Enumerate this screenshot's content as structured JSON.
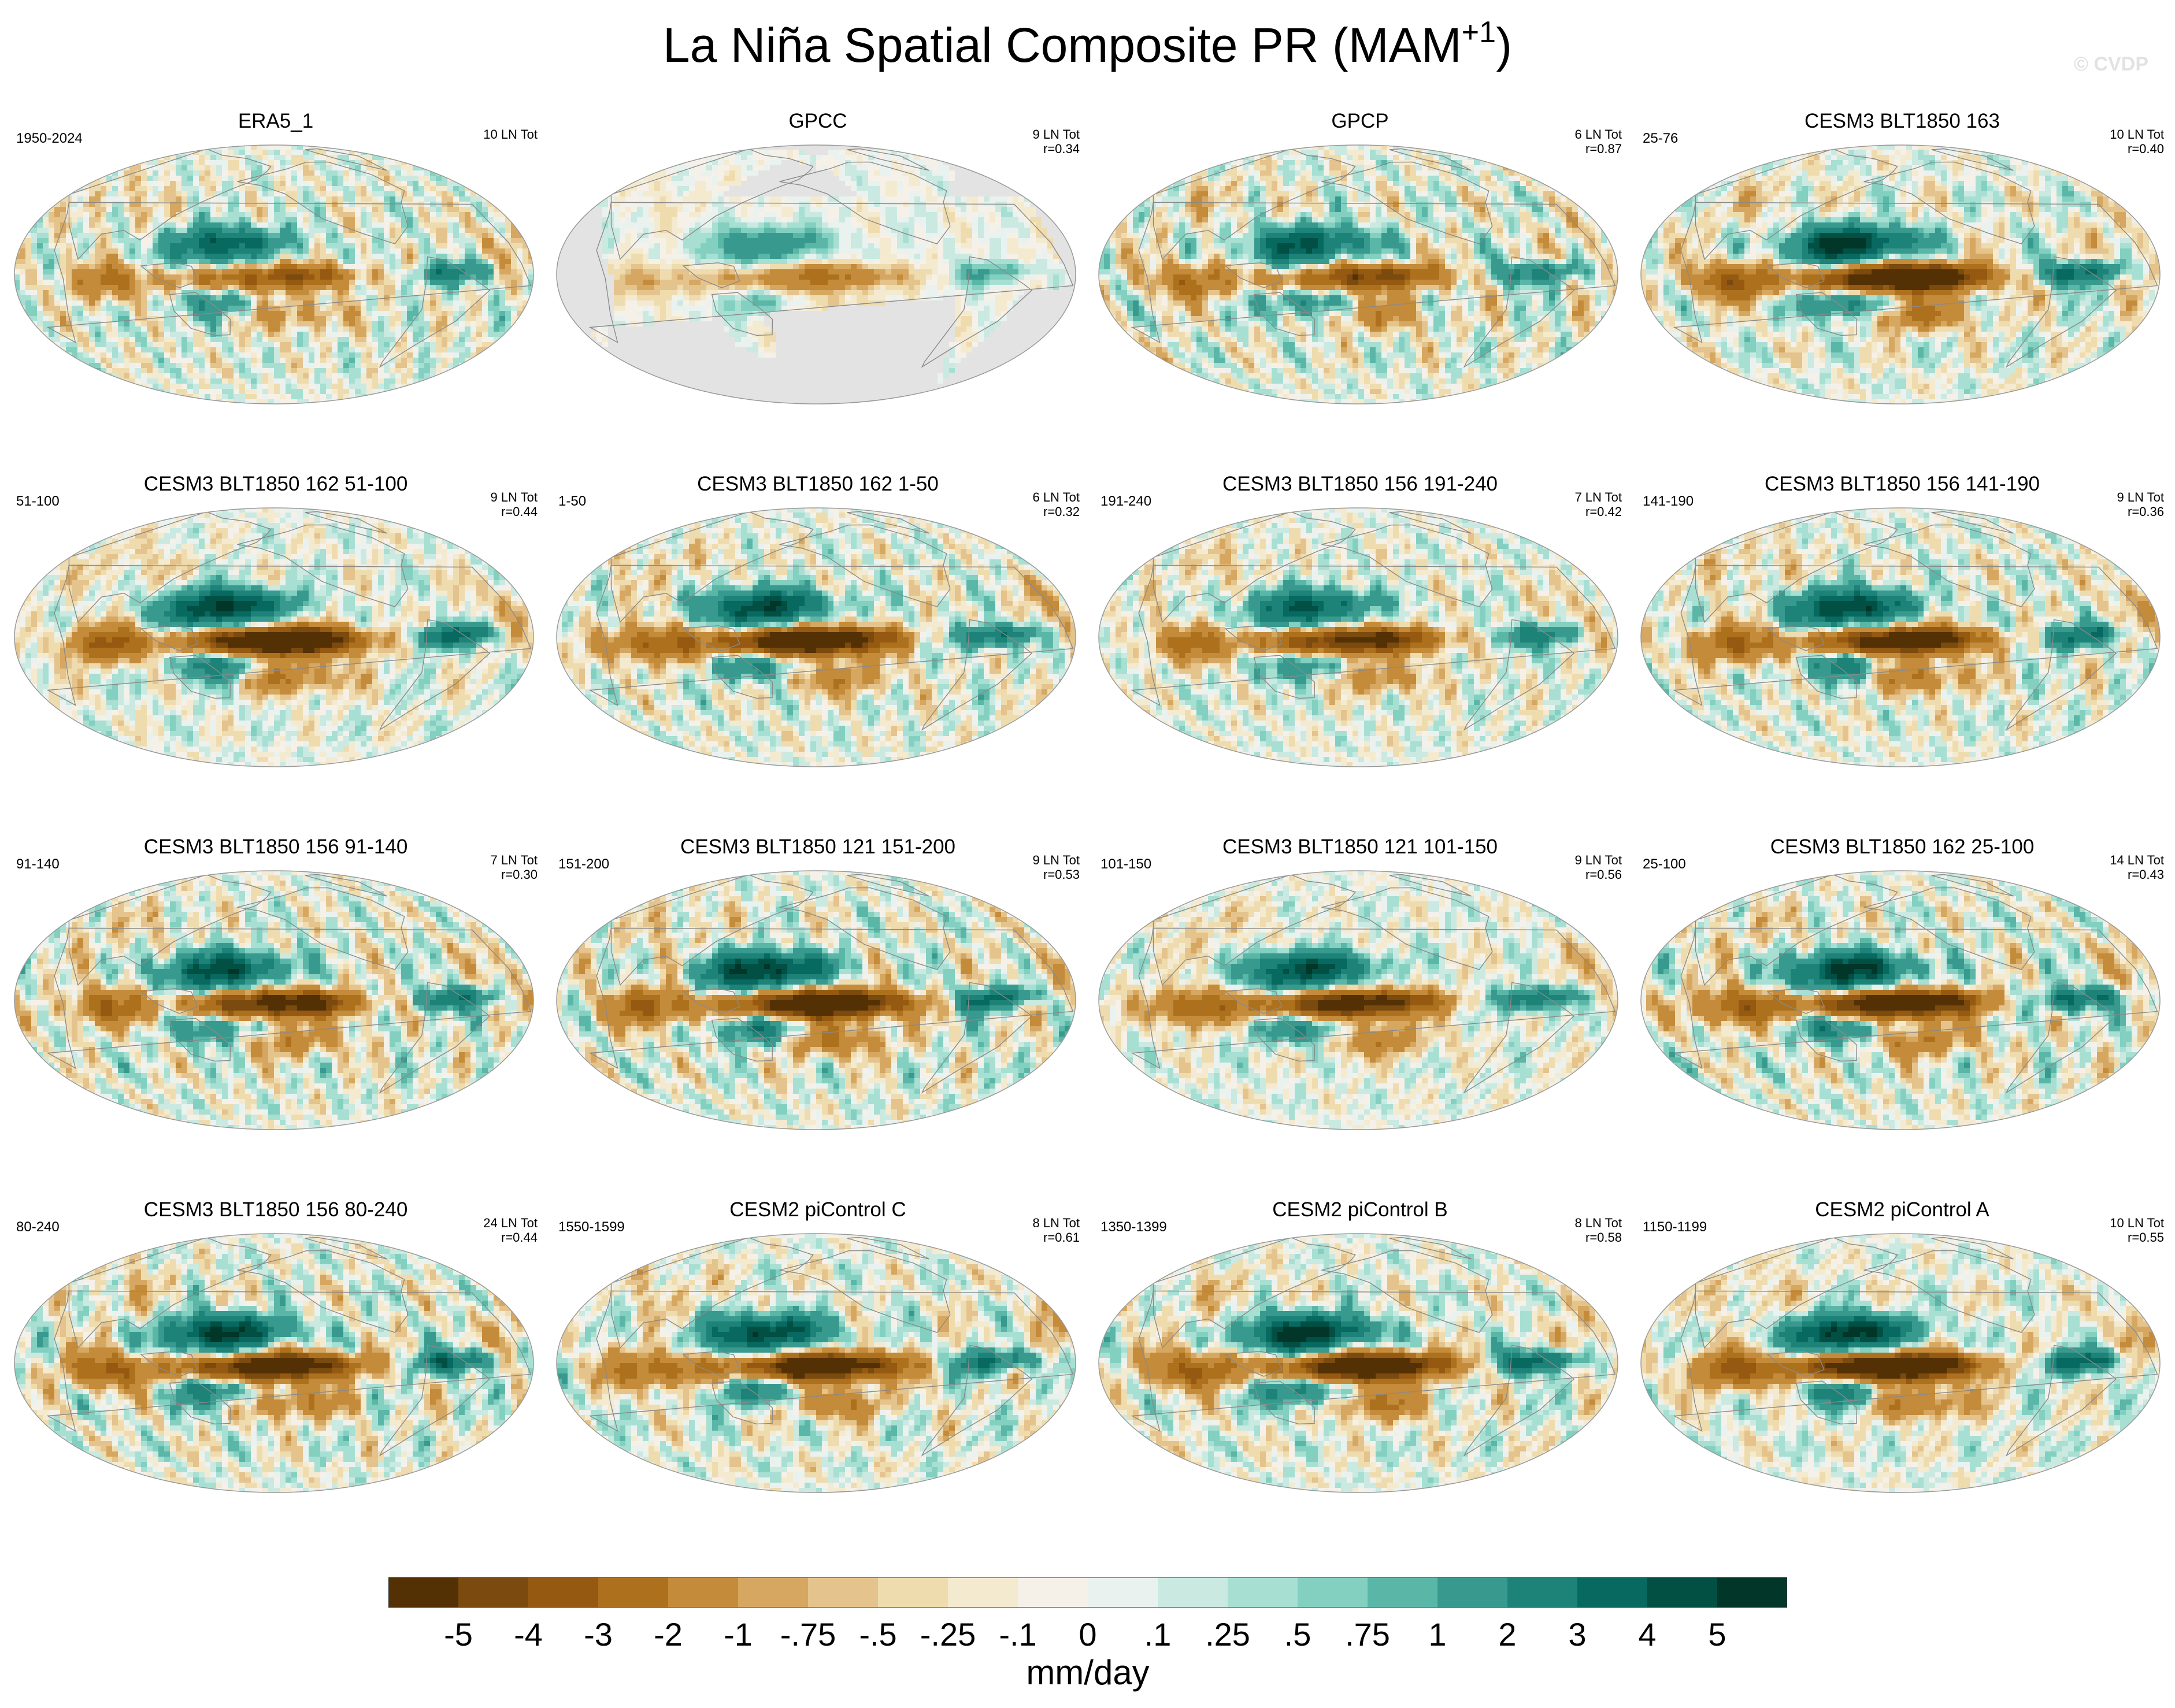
{
  "title": {
    "main": "La Niña Spatial Composite PR (MAM",
    "sup": "+1",
    "close": ")"
  },
  "watermark": "© CVDP",
  "chart_data": {
    "type": "heatmap",
    "variable": "PR",
    "units": "mm/day",
    "colorbar": {
      "levels": [
        "-5",
        "-4",
        "-3",
        "-2",
        "-1",
        "-.75",
        "-.5",
        "-.25",
        "-.1",
        "0",
        ".1",
        ".25",
        ".5",
        ".75",
        "1",
        "2",
        "3",
        "4",
        "5"
      ],
      "colors": [
        "#543005",
        "#7a4a0e",
        "#955911",
        "#ad711d",
        "#c48b3a",
        "#d6a760",
        "#e5c38c",
        "#efdcae",
        "#f4ead0",
        "#f5f1e9",
        "#e9f2ef",
        "#c9e9e1",
        "#a7dfd3",
        "#83d0c1",
        "#5ab7a8",
        "#389a8e",
        "#1d8278",
        "#07695f",
        "#024f44",
        "#013629"
      ]
    },
    "panels": [
      {
        "title": "ERA5_1",
        "period": "1950-2024",
        "count": "10 LN Tot",
        "r": "",
        "pattern": "obs"
      },
      {
        "title": "GPCC",
        "period": "",
        "count": "9 LN Tot",
        "r": "r=0.34",
        "pattern": "land"
      },
      {
        "title": "GPCP",
        "period": "",
        "count": "6 LN Tot",
        "r": "r=0.87",
        "pattern": "obs"
      },
      {
        "title": "CESM3 BLT1850 163",
        "period": "25-76",
        "count": "10 LN Tot",
        "r": "r=0.40",
        "pattern": "model"
      },
      {
        "title": "CESM3 BLT1850 162 51-100",
        "period": "51-100",
        "count": "9 LN Tot",
        "r": "r=0.44",
        "pattern": "model"
      },
      {
        "title": "CESM3 BLT1850 162 1-50",
        "period": "1-50",
        "count": "6 LN Tot",
        "r": "r=0.32",
        "pattern": "model"
      },
      {
        "title": "CESM3 BLT1850 156 191-240",
        "period": "191-240",
        "count": "7 LN Tot",
        "r": "r=0.42",
        "pattern": "model"
      },
      {
        "title": "CESM3 BLT1850 156 141-190",
        "period": "141-190",
        "count": "9 LN Tot",
        "r": "r=0.36",
        "pattern": "model"
      },
      {
        "title": "CESM3 BLT1850 156 91-140",
        "period": "91-140",
        "count": "7 LN Tot",
        "r": "r=0.30",
        "pattern": "model"
      },
      {
        "title": "CESM3 BLT1850 121 151-200",
        "period": "151-200",
        "count": "9 LN Tot",
        "r": "r=0.53",
        "pattern": "model"
      },
      {
        "title": "CESM3 BLT1850 121 101-150",
        "period": "101-150",
        "count": "9 LN Tot",
        "r": "r=0.56",
        "pattern": "model"
      },
      {
        "title": "CESM3 BLT1850 162 25-100",
        "period": "25-100",
        "count": "14 LN Tot",
        "r": "r=0.43",
        "pattern": "model"
      },
      {
        "title": "CESM3 BLT1850 156 80-240",
        "period": "80-240",
        "count": "24 LN Tot",
        "r": "r=0.44",
        "pattern": "model"
      },
      {
        "title": "CESM2 piControl C",
        "period": "1550-1599",
        "count": "8 LN Tot",
        "r": "r=0.61",
        "pattern": "model"
      },
      {
        "title": "CESM2 piControl B",
        "period": "1350-1399",
        "count": "8 LN Tot",
        "r": "r=0.58",
        "pattern": "model"
      },
      {
        "title": "CESM2 piControl A",
        "period": "1150-1199",
        "count": "10 LN Tot",
        "r": "r=0.55",
        "pattern": "model"
      }
    ]
  }
}
